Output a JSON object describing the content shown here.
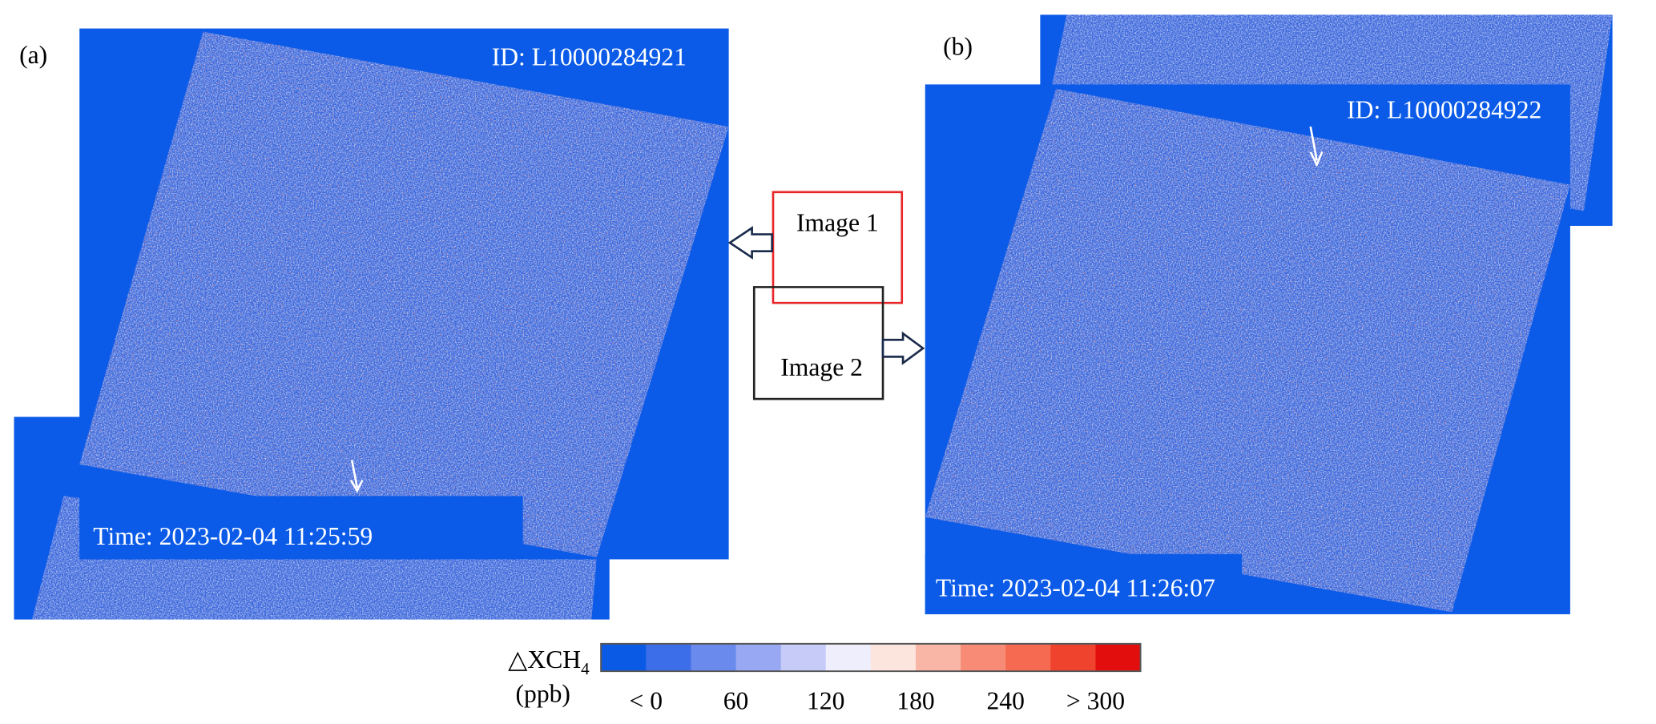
{
  "panels": [
    {
      "label": "(a)",
      "id": "ID: L10000284921",
      "time": "Time: 2023-02-04 11:25:59"
    },
    {
      "label": "(b)",
      "id": "ID: L10000284922",
      "time": "Time: 2023-02-04 11:26:07"
    }
  ],
  "inset": {
    "image1": "Image 1",
    "image2": "Image 2"
  },
  "colorbar": {
    "label": "△XCH",
    "label_subscript": "4",
    "unit": "(ppb)",
    "colors": [
      "#0a5ae6",
      "#3d6ee9",
      "#6a8aee",
      "#98a8f2",
      "#c6ccf7",
      "#eeeefc",
      "#fce5dc",
      "#f9b6a6",
      "#f78b76",
      "#f56a50",
      "#f0432d",
      "#e20e0e"
    ],
    "ticks": [
      "< 0",
      "60",
      "120",
      "180",
      "240",
      "> 300"
    ]
  }
}
